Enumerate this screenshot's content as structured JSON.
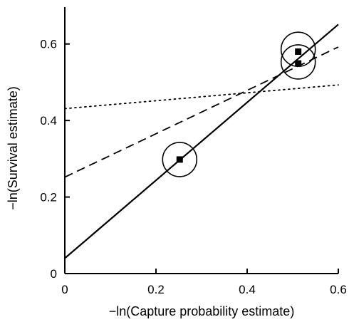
{
  "chart_data": {
    "type": "scatter",
    "xlabel": "−ln(Capture probability estimate)",
    "ylabel": "−ln(Survival estimate)",
    "xlim": [
      0,
      0.6
    ],
    "ylim": [
      0,
      0.7
    ],
    "x_ticks": [
      {
        "value": 0,
        "label": "0"
      },
      {
        "value": 0.2,
        "label": "0.2"
      },
      {
        "value": 0.4,
        "label": "0.4"
      },
      {
        "value": 0.6,
        "label": "0.6"
      }
    ],
    "y_ticks": [
      {
        "value": 0,
        "label": "0"
      },
      {
        "value": 0.2,
        "label": "0.2"
      },
      {
        "value": 0.4,
        "label": "0.4"
      },
      {
        "value": 0.6,
        "label": "0.6"
      }
    ],
    "grid": false,
    "legend": "none",
    "points": [
      {
        "x": 0.252,
        "y": 0.298
      },
      {
        "x": 0.512,
        "y": 0.58
      },
      {
        "x": 0.512,
        "y": 0.549
      }
    ],
    "circled_points": [
      {
        "x": 0.252,
        "y": 0.298
      },
      {
        "x": 0.512,
        "y": 0.586
      },
      {
        "x": 0.512,
        "y": 0.553
      }
    ],
    "lines": [
      {
        "style": "solid",
        "x": [
          0,
          0.6
        ],
        "y": [
          0.04,
          0.651
        ]
      },
      {
        "style": "dashed",
        "x": [
          0,
          0.6
        ],
        "y": [
          0.252,
          0.592
        ]
      },
      {
        "style": "dotted",
        "x": [
          0,
          0.6
        ],
        "y": [
          0.431,
          0.493
        ]
      }
    ],
    "colors": {
      "ink": "#000000",
      "background": "#ffffff"
    }
  }
}
